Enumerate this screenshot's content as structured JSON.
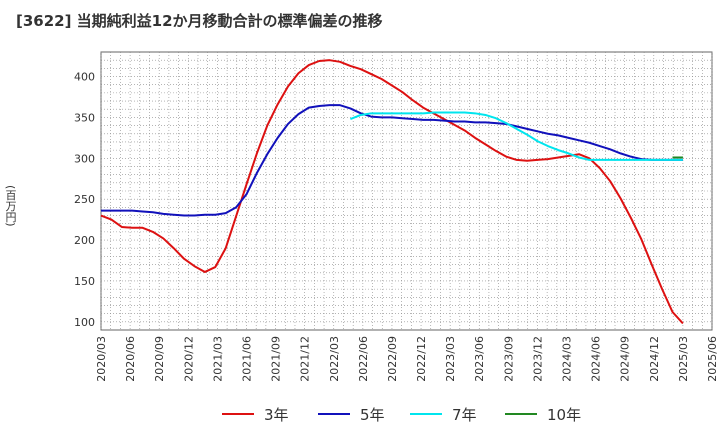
{
  "chart_data": {
    "type": "line",
    "title": "[3622]  当期純利益12か月移動合計の標準偏差の推移",
    "ylabel": "(百万円)",
    "xlabel": "",
    "ylim": [
      90,
      430
    ],
    "yticks": [
      100,
      150,
      200,
      250,
      300,
      350,
      400
    ],
    "x_ticks": [
      "2020/03",
      "2020/06",
      "2020/09",
      "2020/12",
      "2021/03",
      "2021/06",
      "2021/09",
      "2021/12",
      "2022/03",
      "2022/06",
      "2022/09",
      "2022/12",
      "2023/03",
      "2023/06",
      "2023/09",
      "2023/12",
      "2024/03",
      "2024/06",
      "2024/09",
      "2024/12",
      "2025/03",
      "2025/06"
    ],
    "grid": true,
    "series": [
      {
        "name": "3年",
        "color": "#dd1111",
        "points": [
          [
            0,
            230
          ],
          [
            1,
            225
          ],
          [
            2,
            216
          ],
          [
            3,
            215
          ],
          [
            4,
            215
          ],
          [
            5,
            210
          ],
          [
            6,
            202
          ],
          [
            7,
            190
          ],
          [
            8,
            177
          ],
          [
            9,
            168
          ],
          [
            10,
            161
          ],
          [
            11,
            167
          ],
          [
            12,
            190
          ],
          [
            13,
            229
          ],
          [
            14,
            268
          ],
          [
            15,
            306
          ],
          [
            16,
            340
          ],
          [
            17,
            366
          ],
          [
            18,
            388
          ],
          [
            19,
            404
          ],
          [
            20,
            414
          ],
          [
            21,
            419
          ],
          [
            22,
            420
          ],
          [
            23,
            418
          ],
          [
            24,
            413
          ],
          [
            25,
            409
          ],
          [
            26,
            403
          ],
          [
            27,
            397
          ],
          [
            28,
            389
          ],
          [
            29,
            381
          ],
          [
            30,
            371
          ],
          [
            31,
            362
          ],
          [
            32,
            355
          ],
          [
            33,
            348
          ],
          [
            34,
            341
          ],
          [
            35,
            334
          ],
          [
            36,
            325
          ],
          [
            37,
            317
          ],
          [
            38,
            309
          ],
          [
            39,
            302
          ],
          [
            40,
            298
          ],
          [
            41,
            297
          ],
          [
            42,
            298
          ],
          [
            43,
            299
          ],
          [
            44,
            301
          ],
          [
            45,
            303
          ],
          [
            46,
            305
          ],
          [
            47,
            300
          ],
          [
            48,
            288
          ],
          [
            49,
            272
          ],
          [
            50,
            251
          ],
          [
            51,
            227
          ],
          [
            52,
            201
          ],
          [
            53,
            170
          ],
          [
            54,
            140
          ],
          [
            55,
            112
          ],
          [
            56,
            98
          ]
        ]
      },
      {
        "name": "5年",
        "color": "#1111bb",
        "points": [
          [
            0,
            236
          ],
          [
            1,
            236
          ],
          [
            2,
            236
          ],
          [
            3,
            236
          ],
          [
            4,
            235
          ],
          [
            5,
            234
          ],
          [
            6,
            232
          ],
          [
            7,
            231
          ],
          [
            8,
            230
          ],
          [
            9,
            230
          ],
          [
            10,
            231
          ],
          [
            11,
            231
          ],
          [
            12,
            233
          ],
          [
            13,
            240
          ],
          [
            14,
            256
          ],
          [
            15,
            282
          ],
          [
            16,
            305
          ],
          [
            17,
            325
          ],
          [
            18,
            342
          ],
          [
            19,
            354
          ],
          [
            20,
            362
          ],
          [
            21,
            364
          ],
          [
            22,
            365
          ],
          [
            23,
            365
          ],
          [
            24,
            361
          ],
          [
            25,
            355
          ],
          [
            26,
            351
          ],
          [
            27,
            350
          ],
          [
            28,
            350
          ],
          [
            29,
            349
          ],
          [
            30,
            348
          ],
          [
            31,
            347
          ],
          [
            32,
            347
          ],
          [
            33,
            346
          ],
          [
            34,
            345
          ],
          [
            35,
            345
          ],
          [
            36,
            344
          ],
          [
            37,
            344
          ],
          [
            38,
            343
          ],
          [
            39,
            342
          ],
          [
            40,
            339
          ],
          [
            41,
            336
          ],
          [
            42,
            333
          ],
          [
            43,
            330
          ],
          [
            44,
            328
          ],
          [
            45,
            325
          ],
          [
            46,
            322
          ],
          [
            47,
            319
          ],
          [
            48,
            315
          ],
          [
            49,
            311
          ],
          [
            50,
            306
          ],
          [
            51,
            302
          ],
          [
            52,
            299
          ],
          [
            53,
            298
          ],
          [
            54,
            298
          ],
          [
            55,
            298
          ],
          [
            56,
            298
          ]
        ]
      },
      {
        "name": "7年",
        "color": "#00e5ee",
        "points": [
          [
            24,
            348
          ],
          [
            25,
            353
          ],
          [
            26,
            355
          ],
          [
            27,
            355
          ],
          [
            28,
            355
          ],
          [
            29,
            355
          ],
          [
            30,
            355
          ],
          [
            31,
            355
          ],
          [
            32,
            356
          ],
          [
            33,
            356
          ],
          [
            34,
            356
          ],
          [
            35,
            356
          ],
          [
            36,
            355
          ],
          [
            37,
            353
          ],
          [
            38,
            349
          ],
          [
            39,
            343
          ],
          [
            40,
            336
          ],
          [
            41,
            329
          ],
          [
            42,
            321
          ],
          [
            43,
            315
          ],
          [
            44,
            310
          ],
          [
            45,
            306
          ],
          [
            46,
            301
          ],
          [
            47,
            298
          ],
          [
            48,
            298
          ],
          [
            49,
            298
          ],
          [
            50,
            298
          ],
          [
            51,
            298
          ],
          [
            52,
            298
          ],
          [
            53,
            298
          ],
          [
            54,
            298
          ],
          [
            55,
            298
          ],
          [
            56,
            298
          ]
        ]
      },
      {
        "name": "10年",
        "color": "#228822",
        "points": [
          [
            55,
            301
          ],
          [
            56,
            301
          ]
        ]
      }
    ]
  }
}
